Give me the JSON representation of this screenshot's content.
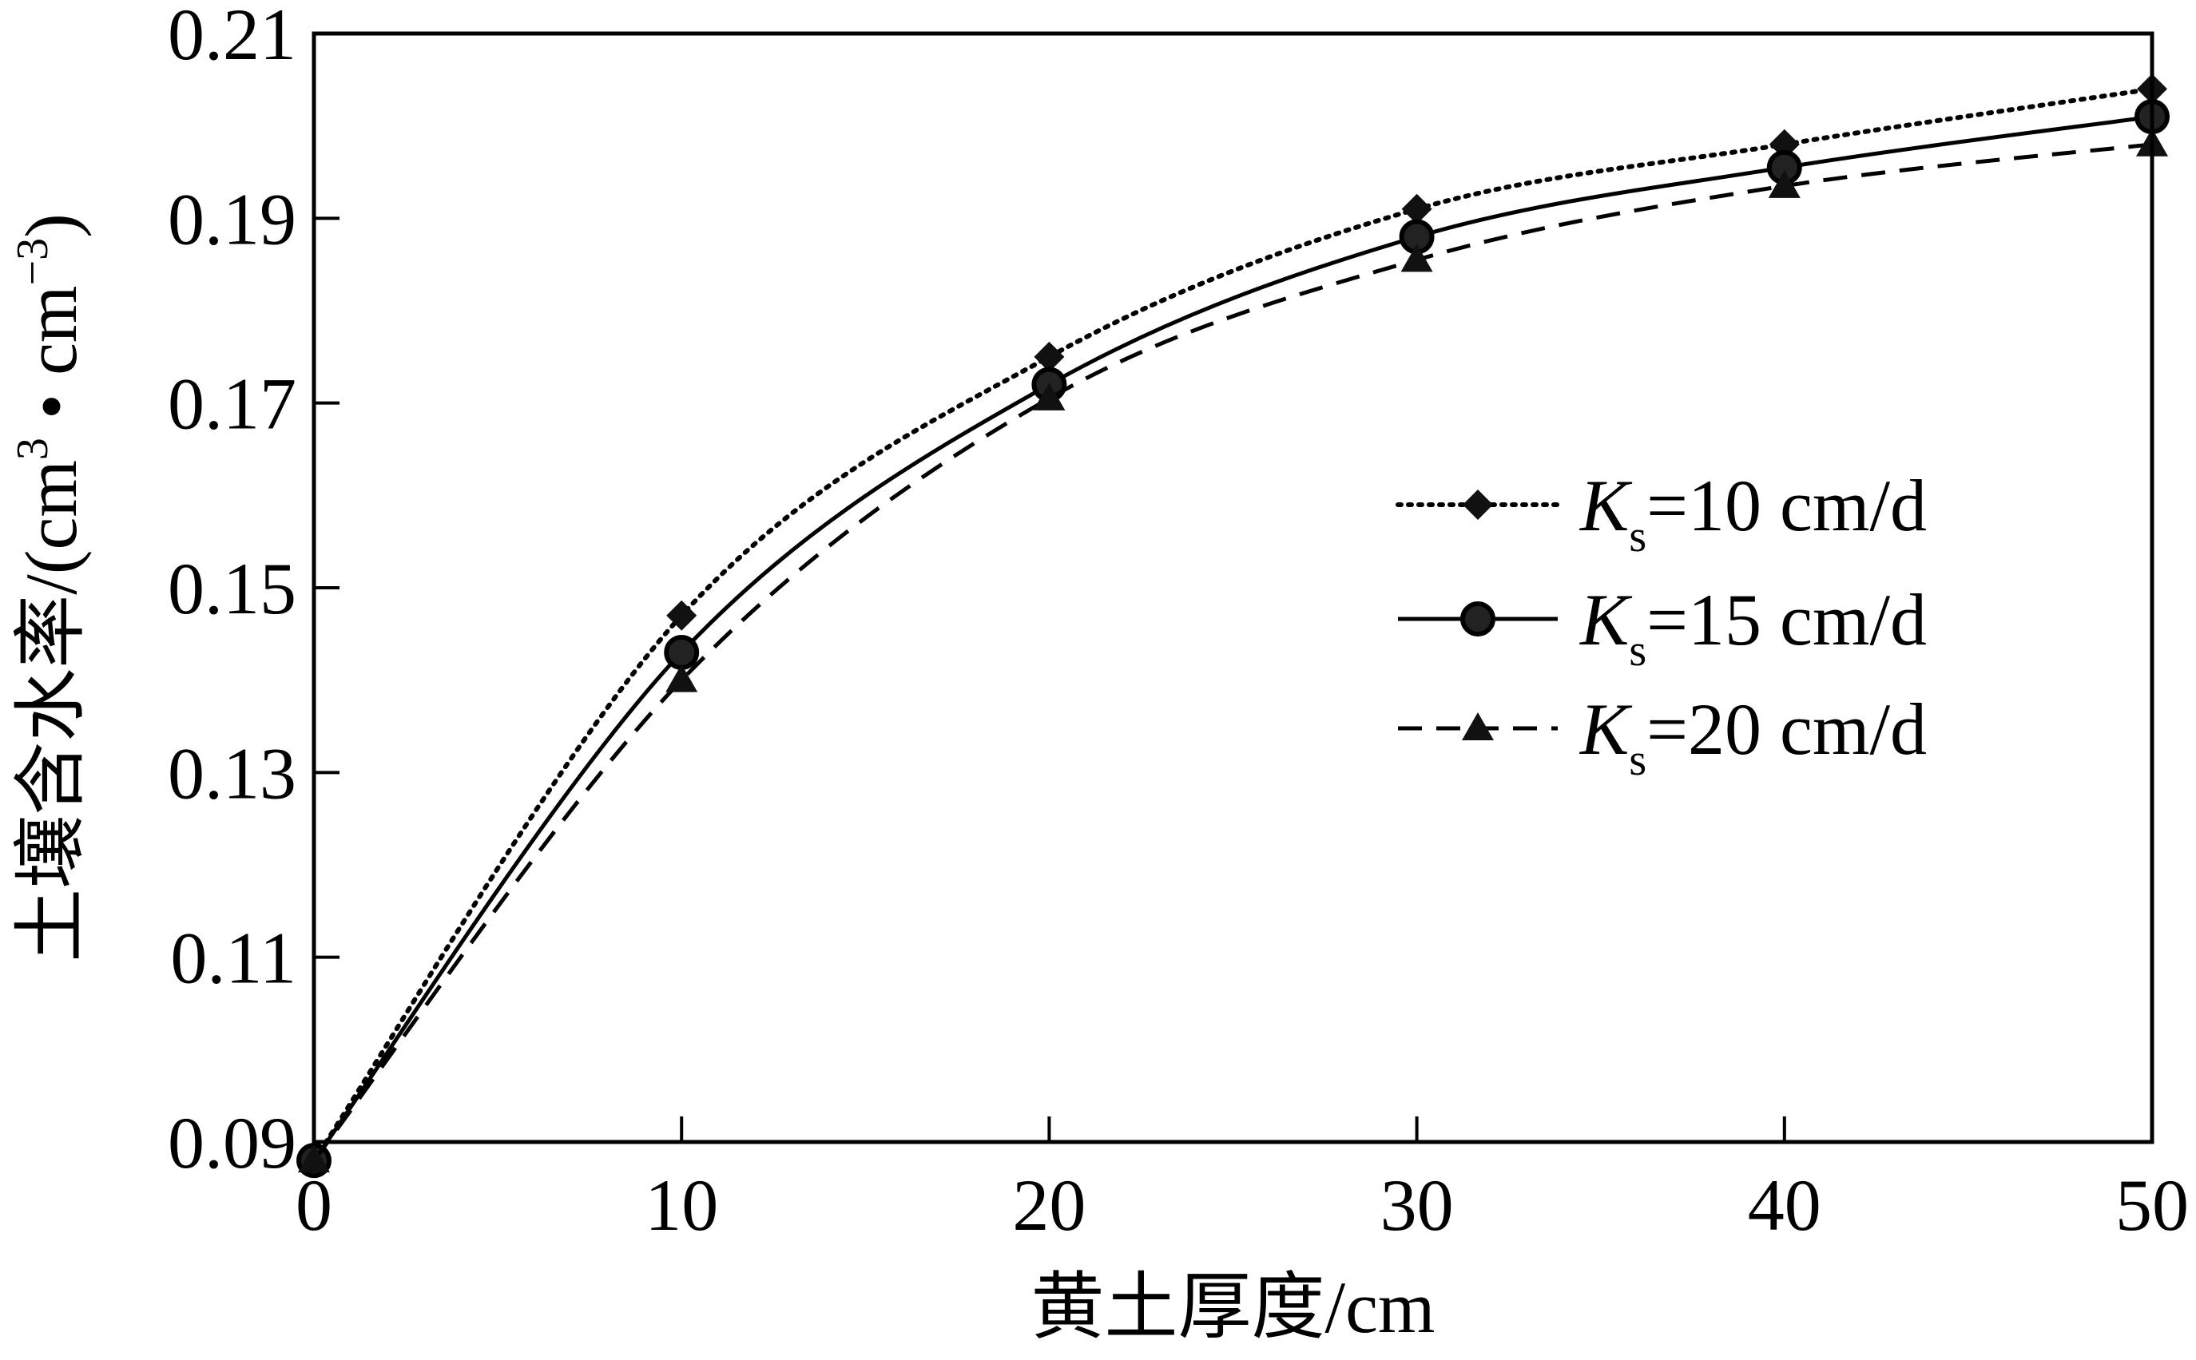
{
  "chart_data": {
    "type": "line",
    "xlabel": "黄土厚度/cm",
    "ylabel": "土壤含水率/(cm³·cm⁻³)",
    "ylabel_parts": {
      "main": "土壤含水率/(cm",
      "sup1": "3",
      "mid": " • cm",
      "sup2": "−3",
      "end": ")"
    },
    "xlim": [
      0,
      50
    ],
    "ylim": [
      0.09,
      0.21
    ],
    "xticks": [
      0,
      10,
      20,
      30,
      40,
      50
    ],
    "xtick_labels": [
      "0",
      "10",
      "20",
      "30",
      "40",
      "50"
    ],
    "yticks": [
      0.09,
      0.11,
      0.13,
      0.15,
      0.17,
      0.19,
      0.21
    ],
    "ytick_labels": [
      "0.09",
      "0.11",
      "0.13",
      "0.15",
      "0.17",
      "0.19",
      "0.21"
    ],
    "grid": false,
    "legend_position": "right",
    "x": [
      0,
      10,
      20,
      30,
      40,
      50
    ],
    "series": [
      {
        "name": "Ks=10 cm/d",
        "label_parts": {
          "k": "K",
          "sub": "s",
          "rest": "=10 cm/d"
        },
        "values": [
          0.088,
          0.147,
          0.175,
          0.191,
          0.198,
          0.204
        ],
        "marker": "diamond",
        "line_style": "dotted",
        "color": "#000000"
      },
      {
        "name": "Ks=15 cm/d",
        "label_parts": {
          "k": "K",
          "sub": "s",
          "rest": "=15 cm/d"
        },
        "values": [
          0.088,
          0.143,
          0.172,
          0.188,
          0.1955,
          0.201
        ],
        "marker": "circle",
        "line_style": "solid",
        "color": "#000000"
      },
      {
        "name": "Ks=20 cm/d",
        "label_parts": {
          "k": "K",
          "sub": "s",
          "rest": "=20 cm/d"
        },
        "values": [
          0.088,
          0.14,
          0.1705,
          0.1855,
          0.1935,
          0.198
        ],
        "marker": "triangle",
        "line_style": "dashed",
        "color": "#000000"
      }
    ]
  }
}
